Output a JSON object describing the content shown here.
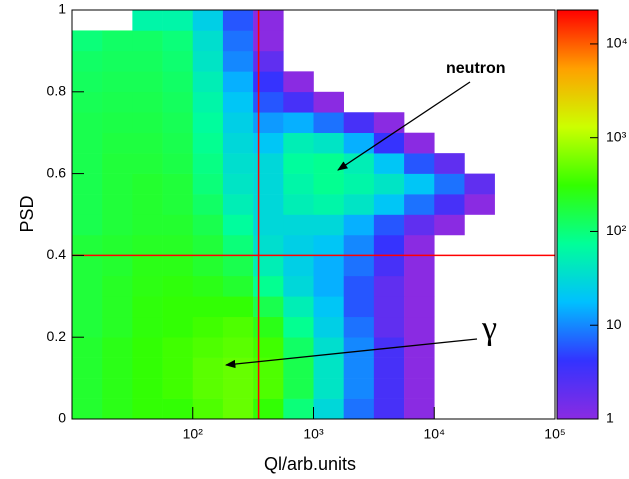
{
  "chart_data": {
    "type": "heatmap2d",
    "x_label": "Ql/arb.units",
    "y_label": "PSD",
    "xlog": true,
    "zlog": true,
    "xlim": [
      10,
      100000
    ],
    "ylim": [
      0,
      1
    ],
    "zlim": [
      1,
      23000
    ],
    "xticks": [
      {
        "value": 100,
        "label": "10²"
      },
      {
        "value": 1000,
        "label": "10³"
      },
      {
        "value": 10000,
        "label": "10⁴"
      },
      {
        "value": 100000,
        "label": "10⁵"
      }
    ],
    "yticks": [
      0,
      0.2,
      0.4,
      0.6,
      0.8,
      1
    ],
    "zticks": [
      1,
      10,
      {
        "value": 100,
        "label": "10²"
      },
      {
        "value": 1000,
        "label": "10³"
      },
      {
        "value": 10000,
        "label": "10⁴"
      }
    ],
    "palette": [
      "#8a2be2",
      "#3333ff",
      "#00c0ff",
      "#00ff99",
      "#33ff00",
      "#ccff00",
      "#ffa000",
      "#ff0000"
    ],
    "x_bins": [
      10,
      17.78,
      31.62,
      56.23,
      100,
      177.8,
      316.2,
      562.3,
      1000,
      1778,
      3162,
      5623,
      10000,
      17783,
      31623,
      56234,
      100000
    ],
    "y_bins": [
      0,
      0.05,
      0.1,
      0.15,
      0.2,
      0.25,
      0.3,
      0.35,
      0.4,
      0.45,
      0.5,
      0.55,
      0.6,
      0.65,
      0.7,
      0.75,
      0.8,
      0.85,
      0.9,
      0.95,
      1
    ],
    "z": [
      [
        200,
        250,
        300,
        300,
        400,
        500,
        300,
        100,
        30,
        8,
        3,
        1,
        0,
        0,
        0,
        0
      ],
      [
        200,
        250,
        300,
        350,
        450,
        500,
        400,
        150,
        40,
        10,
        3,
        1,
        0,
        0,
        0,
        0
      ],
      [
        200,
        250,
        300,
        350,
        450,
        500,
        400,
        150,
        40,
        10,
        3,
        1,
        0,
        0,
        0,
        0
      ],
      [
        200,
        250,
        300,
        350,
        400,
        450,
        350,
        120,
        35,
        10,
        3,
        1,
        0,
        0,
        0,
        0
      ],
      [
        180,
        220,
        280,
        300,
        350,
        400,
        250,
        80,
        25,
        8,
        2,
        1,
        0,
        0,
        0,
        0
      ],
      [
        180,
        220,
        280,
        300,
        300,
        300,
        150,
        50,
        20,
        6,
        2,
        1,
        0,
        0,
        0,
        0
      ],
      [
        180,
        220,
        260,
        280,
        250,
        200,
        80,
        30,
        15,
        6,
        2,
        1,
        0,
        0,
        0,
        0
      ],
      [
        180,
        200,
        250,
        250,
        200,
        150,
        50,
        25,
        15,
        8,
        3,
        1,
        0,
        0,
        0,
        0
      ],
      [
        180,
        200,
        220,
        220,
        180,
        100,
        35,
        25,
        20,
        10,
        4,
        1,
        0,
        0,
        0,
        0
      ],
      [
        150,
        180,
        200,
        200,
        150,
        70,
        30,
        30,
        30,
        15,
        6,
        2,
        1,
        0,
        0,
        0
      ],
      [
        150,
        180,
        200,
        180,
        120,
        50,
        30,
        50,
        60,
        40,
        20,
        8,
        3,
        1,
        0,
        0
      ],
      [
        150,
        180,
        200,
        180,
        100,
        40,
        30,
        60,
        80,
        60,
        40,
        20,
        8,
        2,
        0,
        0
      ],
      [
        150,
        180,
        180,
        160,
        90,
        35,
        30,
        70,
        80,
        50,
        20,
        6,
        2,
        0,
        0,
        0
      ],
      [
        150,
        170,
        170,
        150,
        80,
        30,
        20,
        50,
        40,
        15,
        4,
        1,
        0,
        0,
        0,
        0
      ],
      [
        150,
        160,
        160,
        140,
        70,
        25,
        12,
        15,
        8,
        3,
        1,
        0,
        0,
        0,
        0,
        0
      ],
      [
        140,
        150,
        150,
        130,
        60,
        20,
        6,
        3,
        1,
        0,
        0,
        0,
        0,
        0,
        0,
        0
      ],
      [
        130,
        140,
        140,
        120,
        50,
        15,
        4,
        1,
        0,
        0,
        0,
        0,
        0,
        0,
        0,
        0
      ],
      [
        120,
        130,
        130,
        110,
        40,
        10,
        2,
        0,
        0,
        0,
        0,
        0,
        0,
        0,
        0,
        0
      ],
      [
        100,
        120,
        120,
        100,
        35,
        8,
        1,
        0,
        0,
        0,
        0,
        0,
        0,
        0,
        0,
        0
      ],
      [
        0,
        0,
        60,
        60,
        25,
        6,
        1,
        0,
        0,
        0,
        0,
        0,
        0,
        0,
        0,
        0
      ]
    ],
    "cut_color": "#ff0000",
    "cuts": [
      {
        "axis": "x",
        "value": 351
      },
      {
        "axis": "y",
        "value": 0.4
      }
    ],
    "annotations": [
      "neutron",
      "γ"
    ]
  }
}
